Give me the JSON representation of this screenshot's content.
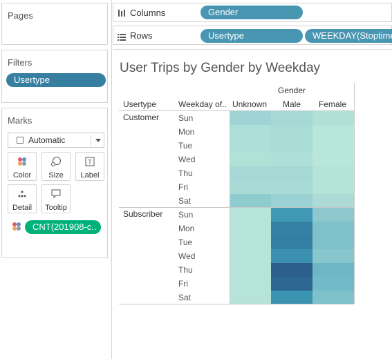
{
  "pages": {
    "title": "Pages"
  },
  "filters": {
    "title": "Filters",
    "items": [
      "Usertype"
    ]
  },
  "marks": {
    "title": "Marks",
    "mark_type": "Automatic",
    "buttons": [
      "Color",
      "Size",
      "Label",
      "Detail",
      "Tooltip"
    ],
    "field": "CNT(201908-c.."
  },
  "columns_shelf": {
    "label": "Columns",
    "pills": [
      "Gender"
    ]
  },
  "rows_shelf": {
    "label": "Rows",
    "pills": [
      "Usertype",
      "WEEKDAY(Stoptime"
    ]
  },
  "sheet": {
    "title": "User Trips by Gender by Weekday",
    "column_header_group": "Gender",
    "row_header_1": "Usertype",
    "row_header_2": "Weekday of..",
    "genders": [
      "Unknown",
      "Male",
      "Female"
    ],
    "usertypes": [
      "Customer",
      "Subscriber"
    ],
    "weekdays": [
      "Sun",
      "Mon",
      "Tue",
      "Wed",
      "Thu",
      "Fri",
      "Sat"
    ]
  },
  "heatmap_colors": {
    "Customer": [
      [
        "#9fd3d4",
        "#a6d8d5",
        "#b2e0d6"
      ],
      [
        "#ace0d8",
        "#aadcd6",
        "#b8e6da"
      ],
      [
        "#ace0d8",
        "#aadcd6",
        "#b8e6da"
      ],
      [
        "#b0e2d8",
        "#aee0d8",
        "#b8e6da"
      ],
      [
        "#a6d9d6",
        "#a6d8d5",
        "#b4e3d8"
      ],
      [
        "#a8dbd6",
        "#a8dad6",
        "#b4e3d8"
      ],
      [
        "#8fcccf",
        "#9ad2d3",
        "#add9d6"
      ]
    ],
    "Subscriber": [
      [
        "#b6e4d8",
        "#3f99b5",
        "#8cc8cd"
      ],
      [
        "#b6e4d8",
        "#3580a4",
        "#7fc1ca"
      ],
      [
        "#b6e4d8",
        "#347ea3",
        "#7fc1ca"
      ],
      [
        "#b6e4d8",
        "#3b90af",
        "#86c6cc"
      ],
      [
        "#b6e4d8",
        "#2c5f8b",
        "#6db6c6"
      ],
      [
        "#b6e4d8",
        "#2d6691",
        "#72bac8"
      ],
      [
        "#b6e4d8",
        "#3b93b2",
        "#7fc1ca"
      ]
    ]
  }
}
